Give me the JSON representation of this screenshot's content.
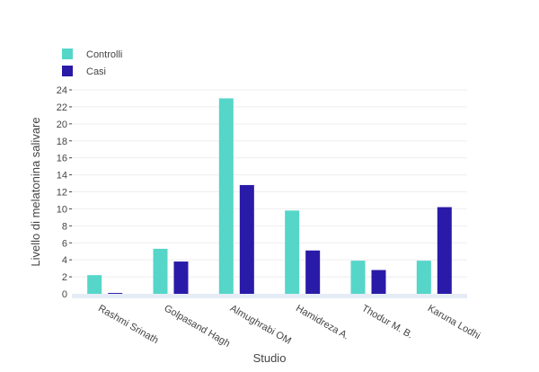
{
  "chart_data": {
    "type": "bar",
    "title": "",
    "xlabel": "Studio",
    "ylabel": "Livello di melatonina salivare",
    "categories": [
      "Rashmi   Srinath",
      "Golpasand Hagh",
      "Almughrabi OM",
      "Hamidreza A.",
      "Thodur M. B.",
      "Karuna Lodhi"
    ],
    "series": [
      {
        "name": "Controlli",
        "color": "#55d6c9",
        "values": [
          2.2,
          5.3,
          23.0,
          9.8,
          3.9,
          3.9
        ]
      },
      {
        "name": "Casi",
        "color": "#2a1aa8",
        "values": [
          0.1,
          3.8,
          12.8,
          5.1,
          2.8,
          10.2
        ]
      }
    ],
    "ylim": [
      0,
      24
    ],
    "yticks": [
      0,
      2,
      4,
      6,
      8,
      10,
      12,
      14,
      16,
      18,
      20,
      22,
      24
    ],
    "grid": true,
    "legend_position": "top-left"
  }
}
